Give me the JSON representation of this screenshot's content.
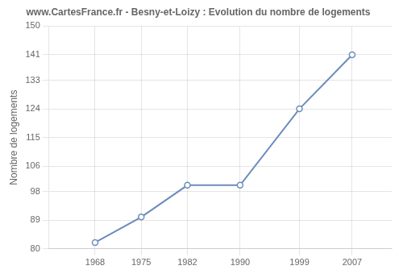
{
  "chart_data": {
    "type": "line",
    "title": "www.CartesFrance.fr - Besny-et-Loizy : Evolution du nombre de logements",
    "ylabel": "Nombre de logements",
    "x": [
      1968,
      1975,
      1982,
      1990,
      1999,
      2007
    ],
    "values": [
      82,
      90,
      100,
      100,
      124,
      141
    ],
    "color": "#6b8cba",
    "marker": "circle",
    "xlim": [
      1961,
      2013
    ],
    "xticks": [
      1968,
      1975,
      1982,
      1990,
      1999,
      2007
    ],
    "ylim": [
      80,
      150
    ],
    "yticks": [
      80,
      89,
      98,
      106,
      115,
      124,
      133,
      141,
      150
    ],
    "grid": true
  }
}
